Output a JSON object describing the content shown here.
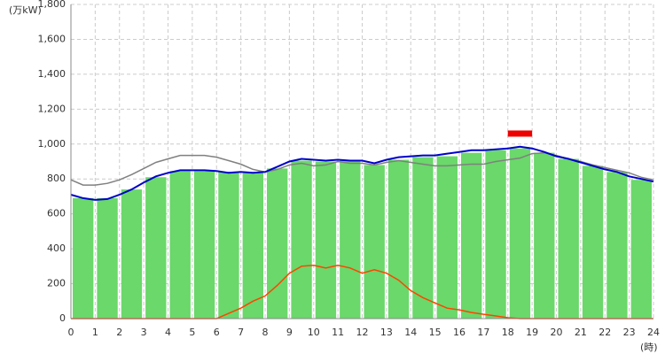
{
  "chart_data": {
    "type": "combo",
    "y_unit": "(万kW)",
    "x_unit": "(時)",
    "xlim": [
      0,
      24
    ],
    "ylim": [
      0,
      1800
    ],
    "xticks": [
      0,
      1,
      2,
      3,
      4,
      5,
      6,
      7,
      8,
      9,
      10,
      11,
      12,
      13,
      14,
      15,
      16,
      17,
      18,
      19,
      20,
      21,
      22,
      23,
      24
    ],
    "yticks": [
      0,
      200,
      400,
      600,
      800,
      {
        "value": 1000,
        "label": "1,000"
      },
      {
        "value": 1200,
        "label": "1,200"
      },
      {
        "value": 1400,
        "label": "1,400"
      },
      {
        "value": 1600,
        "label": "1,600"
      },
      {
        "value": 1800,
        "label": "1,800"
      }
    ],
    "grid": true,
    "bars": {
      "color": "#6ad86a",
      "x": [
        0,
        1,
        2,
        3,
        4,
        5,
        6,
        7,
        8,
        9,
        10,
        11,
        12,
        13,
        14,
        15,
        16,
        17,
        18,
        19,
        20,
        21,
        22,
        23
      ],
      "values": [
        690,
        690,
        740,
        810,
        845,
        845,
        840,
        835,
        860,
        905,
        900,
        905,
        880,
        910,
        925,
        930,
        950,
        965,
        975,
        950,
        915,
        875,
        840,
        795
      ]
    },
    "x": [
      0,
      0.5,
      1,
      1.5,
      2,
      2.5,
      3,
      3.5,
      4,
      4.5,
      5,
      5.5,
      6,
      6.5,
      7,
      7.5,
      8,
      8.5,
      9,
      9.5,
      10,
      10.5,
      11,
      11.5,
      12,
      12.5,
      13,
      13.5,
      14,
      14.5,
      15,
      15.5,
      16,
      16.5,
      17,
      17.5,
      18,
      18.5,
      19,
      19.5,
      20,
      20.5,
      21,
      21.5,
      22,
      22.5,
      23,
      23.5,
      24
    ],
    "series": [
      {
        "color": "#808080",
        "values": [
          795,
          765,
          765,
          775,
          795,
          825,
          860,
          895,
          915,
          935,
          935,
          935,
          925,
          905,
          885,
          855,
          840,
          855,
          880,
          890,
          875,
          880,
          900,
          890,
          890,
          880,
          895,
          905,
          895,
          885,
          875,
          875,
          880,
          885,
          885,
          900,
          910,
          920,
          945,
          950,
          935,
          915,
          900,
          880,
          865,
          850,
          835,
          810,
          795
        ]
      },
      {
        "color": "#0000cc",
        "values": [
          710,
          690,
          680,
          685,
          710,
          740,
          780,
          815,
          835,
          850,
          850,
          850,
          845,
          835,
          840,
          835,
          840,
          870,
          900,
          915,
          910,
          905,
          910,
          905,
          905,
          890,
          910,
          925,
          930,
          935,
          935,
          945,
          955,
          965,
          965,
          970,
          975,
          985,
          975,
          955,
          930,
          915,
          895,
          875,
          855,
          840,
          815,
          800,
          785
        ]
      },
      {
        "color": "#ff4400",
        "values": [
          0,
          0,
          0,
          0,
          0,
          0,
          0,
          0,
          0,
          0,
          0,
          0,
          0,
          30,
          60,
          100,
          130,
          190,
          260,
          300,
          305,
          290,
          305,
          290,
          260,
          280,
          260,
          220,
          160,
          120,
          90,
          60,
          50,
          35,
          25,
          15,
          5,
          0,
          0,
          0,
          0,
          0,
          0,
          0,
          0,
          0,
          0,
          0,
          0
        ]
      }
    ],
    "peak": {
      "color": "#ee0000",
      "x": [
        18,
        19
      ],
      "value": 1060
    }
  }
}
